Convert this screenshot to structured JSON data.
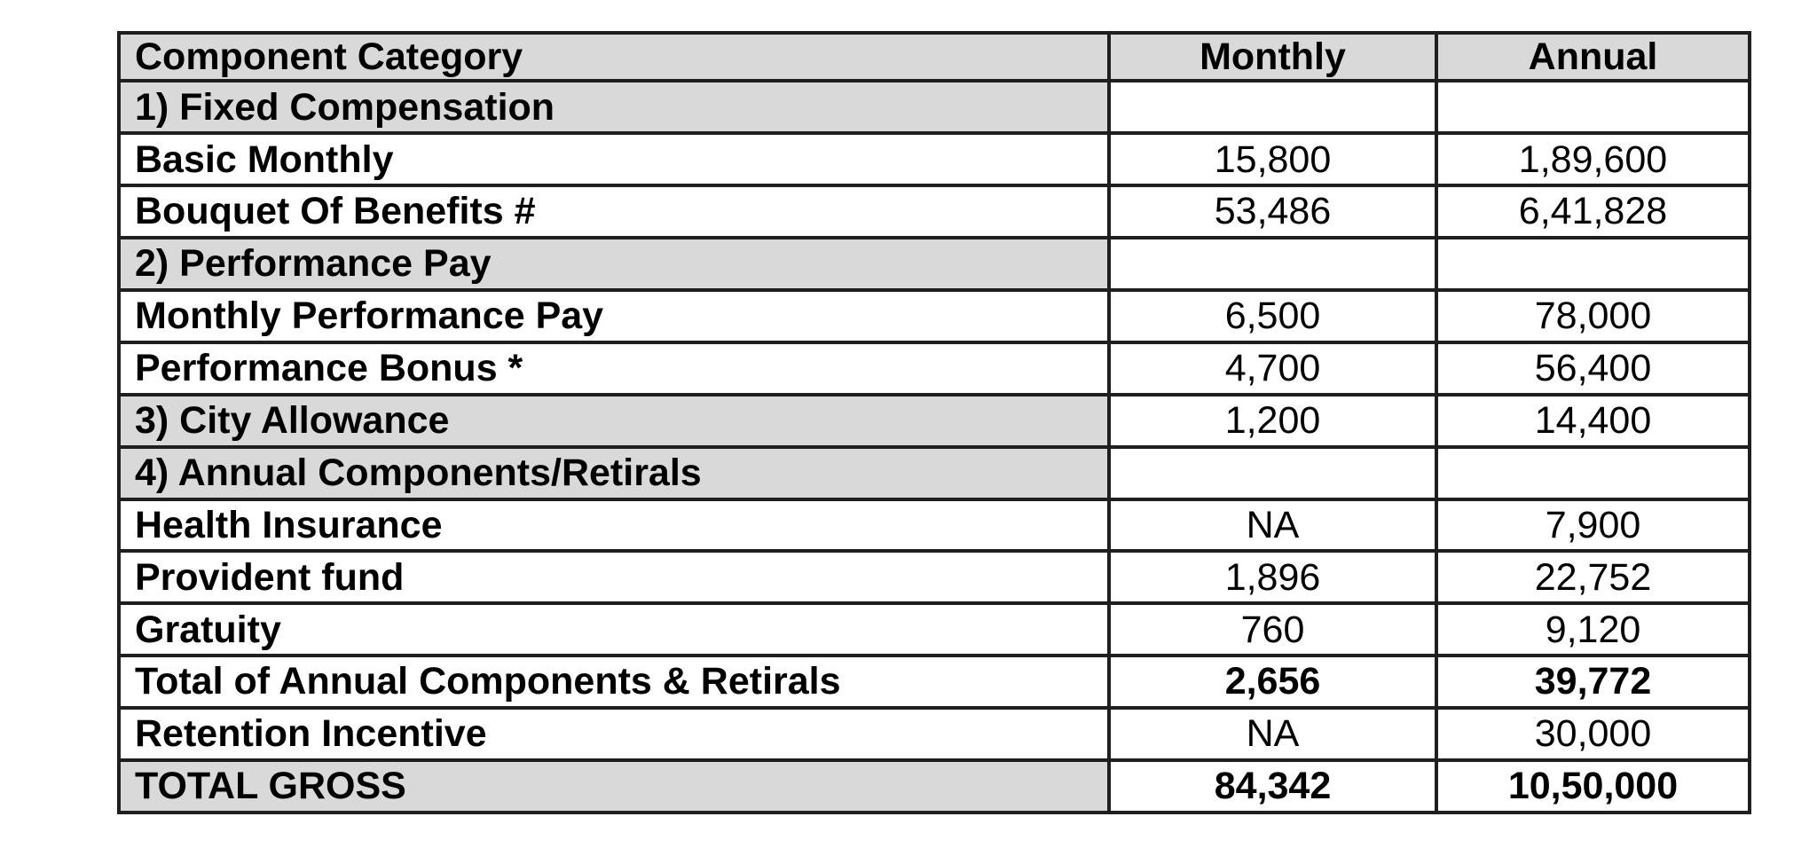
{
  "page": {
    "background": "#ffffff"
  },
  "colors": {
    "header_bg": "#d9d9d9",
    "section_label_bg": "#d9d9d9",
    "border": "#1f1f1f",
    "text": "#000000"
  },
  "table": {
    "columns": [
      {
        "label": "Component Category"
      },
      {
        "label": "Monthly"
      },
      {
        "label": "Annual"
      }
    ],
    "rows": [
      {
        "label": "1) Fixed Compensation",
        "monthly": "",
        "annual": "",
        "type": "section"
      },
      {
        "label": "Basic Monthly",
        "monthly": "15,800",
        "annual": "1,89,600",
        "type": "item"
      },
      {
        "label": "Bouquet Of Benefits #",
        "monthly": "53,486",
        "annual": "6,41,828",
        "type": "item"
      },
      {
        "label": "2) Performance Pay",
        "monthly": "",
        "annual": "",
        "type": "section"
      },
      {
        "label": "Monthly Performance Pay",
        "monthly": "6,500",
        "annual": "78,000",
        "type": "item"
      },
      {
        "label": "Performance Bonus *",
        "monthly": "4,700",
        "annual": "56,400",
        "type": "item"
      },
      {
        "label": "3) City Allowance",
        "monthly": "1,200",
        "annual": "14,400",
        "type": "section"
      },
      {
        "label": "4) Annual Components/Retirals",
        "monthly": "",
        "annual": "",
        "type": "section"
      },
      {
        "label": "Health Insurance",
        "monthly": "NA",
        "annual": "7,900",
        "type": "item"
      },
      {
        "label": "Provident fund",
        "monthly": "1,896",
        "annual": "22,752",
        "type": "item"
      },
      {
        "label": "Gratuity",
        "monthly": "760",
        "annual": "9,120",
        "type": "item"
      },
      {
        "label": "Total of Annual Components & Retirals",
        "monthly": "2,656",
        "annual": "39,772",
        "type": "subtotal"
      },
      {
        "label": "Retention Incentive",
        "monthly": "NA",
        "annual": "30,000",
        "type": "item"
      },
      {
        "label": "TOTAL GROSS",
        "monthly": "84,342",
        "annual": "10,50,000",
        "type": "grand_total"
      }
    ]
  }
}
